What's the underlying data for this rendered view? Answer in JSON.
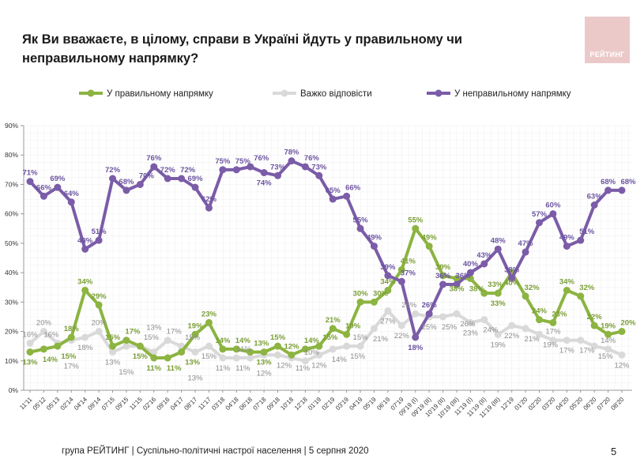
{
  "header": {
    "title": "Як Ви вважаєте, в цілому, справи в Україні йдуть у правильному чи неправильному напрямку?",
    "logo_text": "РЕЙТИНГ"
  },
  "footer": {
    "source": "група РЕЙТИНГ | Суспільно-політичні настрої населення  | 5 серпня 2020",
    "page_number": "5"
  },
  "chart_data": {
    "type": "line",
    "title": "Як Ви вважаєте, в цілому, справи в Україні йдуть у правильному чи неправильному напрямку?",
    "legend_position": "top",
    "grid": true,
    "ylim": [
      0,
      90
    ],
    "yticks": [
      "0%",
      "10%",
      "20%",
      "30%",
      "40%",
      "50%",
      "60%",
      "70%",
      "80%",
      "90%"
    ],
    "categories": [
      "11'11",
      "05'12",
      "05'13",
      "02'14",
      "04'14",
      "09'14",
      "07'15",
      "09'15",
      "11'15",
      "02'16",
      "09'16",
      "04'17",
      "08'17",
      "11'17",
      "03'18",
      "04'18",
      "06'18",
      "07'18",
      "09'18",
      "10'18",
      "12'18",
      "01'19",
      "02'19",
      "03'19",
      "04'19",
      "05'19",
      "06'19",
      "07'19",
      "09'19 (I)",
      "09'19 (II)",
      "10'19 (II)",
      "10'19 (III)",
      "11'19 (I)",
      "11'19 (II)",
      "11'19 (III)",
      "12'19",
      "01'20",
      "02'20",
      "03'20",
      "04'20",
      "05'20",
      "06'20",
      "07'20",
      "08'20"
    ],
    "series": [
      {
        "name": "У правильному напрямку",
        "color": "#8cb441",
        "label_color": "#7a9e35",
        "values": [
          13,
          14,
          15,
          18,
          34,
          29,
          15,
          17,
          15,
          11,
          11,
          13,
          19,
          23,
          14,
          14,
          13,
          13,
          15,
          12,
          14,
          15,
          21,
          19,
          30,
          30,
          34,
          41,
          55,
          49,
          39,
          38,
          38,
          33,
          33,
          40,
          32,
          24,
          23,
          34,
          32,
          22,
          19,
          20
        ]
      },
      {
        "name": "Важко відповісти",
        "color": "#d9d9d9",
        "label_color": "#8c8c8c",
        "values": [
          16,
          20,
          16,
          17,
          18,
          20,
          13,
          15,
          15,
          13,
          17,
          15,
          13,
          15,
          11,
          11,
          11,
          12,
          12,
          11,
          10,
          12,
          14,
          15,
          15,
          21,
          27,
          22,
          26,
          25,
          25,
          26,
          23,
          24,
          19,
          22,
          21,
          19,
          17,
          17,
          17,
          15,
          14,
          12
        ]
      },
      {
        "name": "У неправильному напрямку",
        "color": "#7b5ca8",
        "label_color": "#6c54a0",
        "values": [
          71,
          66,
          69,
          64,
          48,
          51,
          72,
          68,
          70,
          76,
          72,
          72,
          69,
          62,
          75,
          75,
          76,
          74,
          73,
          78,
          76,
          73,
          65,
          66,
          55,
          49,
          39,
          37,
          18,
          26,
          36,
          36,
          40,
          43,
          48,
          38,
          47,
          57,
          60,
          49,
          51,
          63,
          68,
          68
        ]
      }
    ]
  }
}
